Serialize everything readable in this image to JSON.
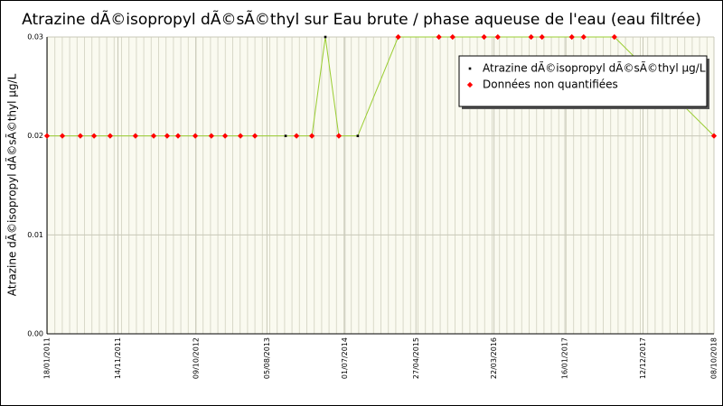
{
  "chart_data": {
    "type": "line",
    "title": "Atrazine dÃ©isopropyl dÃ©sÃ©thyl sur Eau brute / phase aqueuse de l'eau (eau filtrée)",
    "y_label": "Atrazine dÃ©isopropyl dÃ©sÃ©thyl µg/L",
    "x": [
      "18/01/2011",
      "24/03/2011",
      "08/06/2011",
      "05/08/2011",
      "12/10/2011",
      "27/01/2012",
      "13/04/2012",
      "09/06/2012",
      "25/07/2012",
      "06/10/2012",
      "13/12/2012",
      "09/02/2013",
      "15/04/2013",
      "15/06/2013",
      "23/10/2013",
      "08/12/2013",
      "11/02/2014",
      "09/04/2014",
      "05/06/2014",
      "24/08/2014",
      "11/02/2015",
      "02/08/2015",
      "29/09/2015",
      "09/02/2016",
      "07/04/2016",
      "26/08/2016",
      "11/10/2016",
      "14/02/2017",
      "05/04/2017",
      "13/08/2017",
      "08/10/2018"
    ],
    "series": [
      {
        "name": "Atrazine dÃ©isopropyl dÃ©sÃ©thyl µg/L",
        "color": "#000000",
        "line_color": "#9acd32",
        "values": [
          0.02,
          0.02,
          0.02,
          0.02,
          0.02,
          0.02,
          0.02,
          0.02,
          0.02,
          0.02,
          0.02,
          0.02,
          0.02,
          0.02,
          0.02,
          0.02,
          0.02,
          0.03,
          0.02,
          0.02,
          0.03,
          0.03,
          0.03,
          0.03,
          0.03,
          0.03,
          0.03,
          0.03,
          0.03,
          0.03,
          0.02
        ]
      },
      {
        "name": "Données non quantifiées",
        "color": "#ff0000",
        "values": [
          0.02,
          0.02,
          0.02,
          0.02,
          0.02,
          0.02,
          0.02,
          0.02,
          0.02,
          0.02,
          0.02,
          0.02,
          0.02,
          0.02,
          null,
          0.02,
          0.02,
          null,
          0.02,
          null,
          0.03,
          0.03,
          0.03,
          0.03,
          0.03,
          0.03,
          0.03,
          0.03,
          0.03,
          0.03,
          0.02
        ]
      }
    ],
    "xlim": [
      "18/01/2011",
      "08/10/2018"
    ],
    "xticks": [
      "18/01/2011",
      "14/11/2011",
      "09/10/2012",
      "05/08/2013",
      "01/07/2014",
      "27/04/2015",
      "22/03/2016",
      "16/01/2017",
      "12/12/2017",
      "08/10/2018"
    ],
    "ylim": [
      0,
      0.03
    ],
    "yticks": [
      {
        "value": 0,
        "label": "0.00"
      },
      0.01,
      0.02,
      0.03
    ],
    "grid": true,
    "legend": "upper right"
  }
}
